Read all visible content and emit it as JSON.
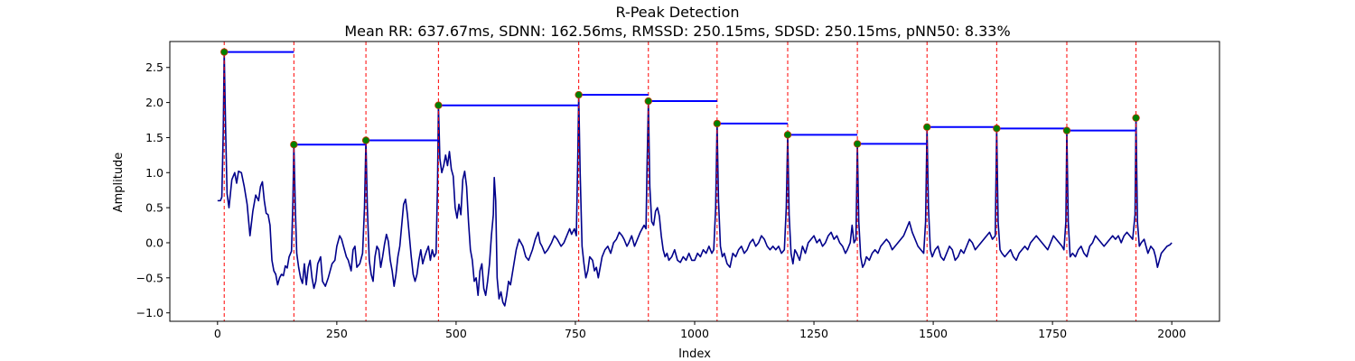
{
  "chart_data": {
    "type": "line",
    "title": "R-Peak Detection",
    "subtitle": "Mean RR: 637.67ms, SDNN: 162.56ms, RMSSD: 250.15ms, SDSD: 250.15ms, pNN50: 8.33%",
    "xlabel": "Index",
    "ylabel": "Amplitude",
    "xlim": [
      -100,
      2100
    ],
    "ylim": [
      -1.12,
      2.87
    ],
    "xticks": [
      0,
      250,
      500,
      750,
      1000,
      1250,
      1500,
      1750,
      2000
    ],
    "yticks": [
      -1.0,
      -0.5,
      0.0,
      0.5,
      1.0,
      1.5,
      2.0,
      2.5
    ],
    "grid": false,
    "colors": {
      "signal": "#00008b",
      "peak_lines": "#ff0000",
      "peak_marker_fill": "#008000",
      "peak_marker_edge": "#cc3300",
      "rr_segments": "#0000ff"
    },
    "signal": [
      [
        0,
        0.6
      ],
      [
        6,
        0.6
      ],
      [
        9,
        0.65
      ],
      [
        12,
        1.6
      ],
      [
        14,
        2.72
      ],
      [
        17,
        1.6
      ],
      [
        20,
        0.7
      ],
      [
        24,
        0.5
      ],
      [
        30,
        0.9
      ],
      [
        36,
        1.0
      ],
      [
        40,
        0.85
      ],
      [
        44,
        1.02
      ],
      [
        50,
        1.0
      ],
      [
        56,
        0.8
      ],
      [
        62,
        0.55
      ],
      [
        68,
        0.1
      ],
      [
        74,
        0.45
      ],
      [
        80,
        0.68
      ],
      [
        86,
        0.6
      ],
      [
        90,
        0.8
      ],
      [
        94,
        0.87
      ],
      [
        98,
        0.6
      ],
      [
        102,
        0.42
      ],
      [
        106,
        0.4
      ],
      [
        110,
        0.25
      ],
      [
        114,
        -0.25
      ],
      [
        118,
        -0.4
      ],
      [
        122,
        -0.45
      ],
      [
        126,
        -0.6
      ],
      [
        130,
        -0.5
      ],
      [
        134,
        -0.45
      ],
      [
        138,
        -0.47
      ],
      [
        142,
        -0.33
      ],
      [
        146,
        -0.36
      ],
      [
        150,
        -0.2
      ],
      [
        155,
        -0.12
      ],
      [
        158,
        0.6
      ],
      [
        160,
        1.4
      ],
      [
        163,
        0.5
      ],
      [
        166,
        -0.15
      ],
      [
        170,
        -0.35
      ],
      [
        174,
        -0.5
      ],
      [
        178,
        -0.58
      ],
      [
        182,
        -0.3
      ],
      [
        186,
        -0.6
      ],
      [
        190,
        -0.35
      ],
      [
        194,
        -0.25
      ],
      [
        198,
        -0.5
      ],
      [
        202,
        -0.65
      ],
      [
        206,
        -0.55
      ],
      [
        210,
        -0.3
      ],
      [
        216,
        -0.2
      ],
      [
        220,
        -0.55
      ],
      [
        226,
        -0.62
      ],
      [
        232,
        -0.5
      ],
      [
        236,
        -0.4
      ],
      [
        240,
        -0.3
      ],
      [
        246,
        -0.25
      ],
      [
        250,
        -0.05
      ],
      [
        256,
        0.1
      ],
      [
        260,
        0.05
      ],
      [
        266,
        -0.1
      ],
      [
        270,
        -0.2
      ],
      [
        274,
        -0.25
      ],
      [
        280,
        -0.4
      ],
      [
        284,
        -0.1
      ],
      [
        288,
        -0.05
      ],
      [
        292,
        -0.35
      ],
      [
        298,
        -0.3
      ],
      [
        304,
        -0.15
      ],
      [
        308,
        0.5
      ],
      [
        311,
        1.46
      ],
      [
        314,
        0.5
      ],
      [
        318,
        -0.25
      ],
      [
        322,
        -0.45
      ],
      [
        326,
        -0.55
      ],
      [
        330,
        -0.2
      ],
      [
        334,
        -0.05
      ],
      [
        338,
        -0.1
      ],
      [
        342,
        -0.35
      ],
      [
        346,
        -0.2
      ],
      [
        350,
        -0.02
      ],
      [
        354,
        0.12
      ],
      [
        358,
        0.02
      ],
      [
        362,
        -0.25
      ],
      [
        366,
        -0.4
      ],
      [
        370,
        -0.62
      ],
      [
        374,
        -0.45
      ],
      [
        378,
        -0.2
      ],
      [
        382,
        -0.05
      ],
      [
        386,
        0.25
      ],
      [
        390,
        0.55
      ],
      [
        394,
        0.62
      ],
      [
        398,
        0.4
      ],
      [
        402,
        0.1
      ],
      [
        406,
        -0.2
      ],
      [
        410,
        -0.45
      ],
      [
        414,
        -0.55
      ],
      [
        418,
        -0.45
      ],
      [
        422,
        -0.25
      ],
      [
        426,
        -0.1
      ],
      [
        430,
        -0.3
      ],
      [
        434,
        -0.2
      ],
      [
        438,
        -0.12
      ],
      [
        442,
        -0.05
      ],
      [
        446,
        -0.25
      ],
      [
        450,
        -0.1
      ],
      [
        454,
        -0.2
      ],
      [
        458,
        -0.15
      ],
      [
        461,
        0.8
      ],
      [
        463,
        1.96
      ],
      [
        466,
        1.2
      ],
      [
        470,
        1.0
      ],
      [
        474,
        1.1
      ],
      [
        478,
        1.25
      ],
      [
        482,
        1.1
      ],
      [
        486,
        1.3
      ],
      [
        490,
        1.05
      ],
      [
        494,
        0.95
      ],
      [
        498,
        0.5
      ],
      [
        502,
        0.35
      ],
      [
        506,
        0.55
      ],
      [
        510,
        0.4
      ],
      [
        514,
        0.9
      ],
      [
        518,
        1.02
      ],
      [
        522,
        0.8
      ],
      [
        526,
        0.3
      ],
      [
        530,
        -0.1
      ],
      [
        534,
        -0.25
      ],
      [
        538,
        -0.55
      ],
      [
        542,
        -0.5
      ],
      [
        546,
        -0.75
      ],
      [
        550,
        -0.4
      ],
      [
        554,
        -0.3
      ],
      [
        558,
        -0.65
      ],
      [
        562,
        -0.75
      ],
      [
        566,
        -0.55
      ],
      [
        570,
        -0.3
      ],
      [
        574,
        0.1
      ],
      [
        578,
        0.4
      ],
      [
        580,
        0.93
      ],
      [
        583,
        0.6
      ],
      [
        586,
        -0.5
      ],
      [
        590,
        -0.8
      ],
      [
        594,
        -0.7
      ],
      [
        598,
        -0.85
      ],
      [
        602,
        -0.9
      ],
      [
        606,
        -0.75
      ],
      [
        610,
        -0.55
      ],
      [
        614,
        -0.6
      ],
      [
        620,
        -0.35
      ],
      [
        626,
        -0.1
      ],
      [
        632,
        0.05
      ],
      [
        640,
        -0.05
      ],
      [
        646,
        -0.2
      ],
      [
        652,
        -0.25
      ],
      [
        660,
        -0.1
      ],
      [
        666,
        0.05
      ],
      [
        672,
        0.15
      ],
      [
        676,
        0.0
      ],
      [
        680,
        -0.05
      ],
      [
        686,
        -0.15
      ],
      [
        692,
        -0.1
      ],
      [
        700,
        0.0
      ],
      [
        706,
        0.1
      ],
      [
        712,
        0.05
      ],
      [
        720,
        -0.05
      ],
      [
        726,
        0.0
      ],
      [
        732,
        0.1
      ],
      [
        738,
        0.2
      ],
      [
        742,
        0.12
      ],
      [
        748,
        0.2
      ],
      [
        752,
        0.1
      ],
      [
        755,
        1.2
      ],
      [
        757,
        2.11
      ],
      [
        760,
        1.0
      ],
      [
        764,
        -0.05
      ],
      [
        768,
        -0.3
      ],
      [
        772,
        -0.5
      ],
      [
        776,
        -0.4
      ],
      [
        780,
        -0.2
      ],
      [
        786,
        -0.25
      ],
      [
        790,
        -0.4
      ],
      [
        794,
        -0.35
      ],
      [
        798,
        -0.5
      ],
      [
        802,
        -0.35
      ],
      [
        806,
        -0.2
      ],
      [
        812,
        -0.1
      ],
      [
        818,
        -0.05
      ],
      [
        824,
        -0.15
      ],
      [
        830,
        0.0
      ],
      [
        836,
        0.05
      ],
      [
        842,
        0.15
      ],
      [
        848,
        0.1
      ],
      [
        852,
        0.05
      ],
      [
        858,
        -0.05
      ],
      [
        862,
        0.0
      ],
      [
        868,
        0.1
      ],
      [
        874,
        -0.05
      ],
      [
        880,
        0.05
      ],
      [
        886,
        0.15
      ],
      [
        890,
        0.2
      ],
      [
        894,
        0.25
      ],
      [
        898,
        0.2
      ],
      [
        900,
        1.0
      ],
      [
        903,
        2.02
      ],
      [
        906,
        0.8
      ],
      [
        910,
        0.3
      ],
      [
        914,
        0.25
      ],
      [
        918,
        0.45
      ],
      [
        922,
        0.5
      ],
      [
        926,
        0.38
      ],
      [
        930,
        0.1
      ],
      [
        934,
        -0.1
      ],
      [
        938,
        -0.2
      ],
      [
        942,
        -0.15
      ],
      [
        946,
        -0.25
      ],
      [
        952,
        -0.2
      ],
      [
        958,
        -0.1
      ],
      [
        964,
        -0.25
      ],
      [
        970,
        -0.28
      ],
      [
        976,
        -0.2
      ],
      [
        982,
        -0.25
      ],
      [
        988,
        -0.15
      ],
      [
        994,
        -0.25
      ],
      [
        1000,
        -0.25
      ],
      [
        1006,
        -0.15
      ],
      [
        1012,
        -0.2
      ],
      [
        1018,
        -0.1
      ],
      [
        1024,
        -0.15
      ],
      [
        1030,
        -0.05
      ],
      [
        1036,
        -0.15
      ],
      [
        1040,
        -0.1
      ],
      [
        1044,
        0.5
      ],
      [
        1047,
        1.7
      ],
      [
        1050,
        0.6
      ],
      [
        1054,
        -0.05
      ],
      [
        1058,
        -0.2
      ],
      [
        1062,
        -0.15
      ],
      [
        1068,
        -0.3
      ],
      [
        1074,
        -0.35
      ],
      [
        1080,
        -0.15
      ],
      [
        1086,
        -0.2
      ],
      [
        1092,
        -0.1
      ],
      [
        1098,
        -0.05
      ],
      [
        1104,
        -0.15
      ],
      [
        1110,
        -0.1
      ],
      [
        1116,
        0.0
      ],
      [
        1122,
        0.05
      ],
      [
        1128,
        -0.05
      ],
      [
        1134,
        0.0
      ],
      [
        1140,
        0.1
      ],
      [
        1146,
        0.05
      ],
      [
        1152,
        -0.05
      ],
      [
        1158,
        -0.1
      ],
      [
        1164,
        -0.05
      ],
      [
        1170,
        -0.1
      ],
      [
        1176,
        -0.05
      ],
      [
        1182,
        -0.15
      ],
      [
        1188,
        -0.1
      ],
      [
        1192,
        0.5
      ],
      [
        1195,
        1.54
      ],
      [
        1198,
        0.4
      ],
      [
        1202,
        -0.15
      ],
      [
        1206,
        -0.3
      ],
      [
        1210,
        -0.1
      ],
      [
        1214,
        -0.15
      ],
      [
        1220,
        -0.25
      ],
      [
        1226,
        -0.05
      ],
      [
        1232,
        -0.15
      ],
      [
        1238,
        0.0
      ],
      [
        1244,
        0.05
      ],
      [
        1250,
        0.1
      ],
      [
        1256,
        0.0
      ],
      [
        1262,
        0.05
      ],
      [
        1268,
        -0.05
      ],
      [
        1274,
        0.0
      ],
      [
        1280,
        0.1
      ],
      [
        1286,
        0.15
      ],
      [
        1292,
        0.05
      ],
      [
        1298,
        0.1
      ],
      [
        1304,
        0.0
      ],
      [
        1310,
        -0.05
      ],
      [
        1316,
        -0.15
      ],
      [
        1320,
        -0.1
      ],
      [
        1326,
        0.0
      ],
      [
        1330,
        0.25
      ],
      [
        1334,
        0.0
      ],
      [
        1338,
        0.05
      ],
      [
        1341,
        1.41
      ],
      [
        1344,
        0.3
      ],
      [
        1348,
        -0.2
      ],
      [
        1352,
        -0.35
      ],
      [
        1356,
        -0.3
      ],
      [
        1360,
        -0.2
      ],
      [
        1366,
        -0.25
      ],
      [
        1372,
        -0.15
      ],
      [
        1378,
        -0.1
      ],
      [
        1384,
        -0.15
      ],
      [
        1390,
        -0.05
      ],
      [
        1396,
        0.0
      ],
      [
        1402,
        0.05
      ],
      [
        1408,
        0.0
      ],
      [
        1414,
        -0.1
      ],
      [
        1420,
        -0.05
      ],
      [
        1426,
        0.0
      ],
      [
        1432,
        0.05
      ],
      [
        1438,
        0.1
      ],
      [
        1444,
        0.2
      ],
      [
        1450,
        0.3
      ],
      [
        1456,
        0.15
      ],
      [
        1462,
        0.05
      ],
      [
        1468,
        -0.05
      ],
      [
        1474,
        -0.1
      ],
      [
        1480,
        -0.15
      ],
      [
        1484,
        0.3
      ],
      [
        1487,
        1.65
      ],
      [
        1490,
        0.5
      ],
      [
        1494,
        -0.1
      ],
      [
        1498,
        -0.2
      ],
      [
        1504,
        -0.1
      ],
      [
        1510,
        -0.05
      ],
      [
        1516,
        -0.2
      ],
      [
        1522,
        -0.25
      ],
      [
        1528,
        -0.15
      ],
      [
        1534,
        -0.05
      ],
      [
        1540,
        -0.1
      ],
      [
        1546,
        -0.25
      ],
      [
        1552,
        -0.2
      ],
      [
        1558,
        -0.1
      ],
      [
        1564,
        -0.15
      ],
      [
        1570,
        -0.05
      ],
      [
        1576,
        0.05
      ],
      [
        1582,
        0.0
      ],
      [
        1588,
        -0.1
      ],
      [
        1594,
        -0.05
      ],
      [
        1600,
        0.0
      ],
      [
        1606,
        0.05
      ],
      [
        1612,
        0.1
      ],
      [
        1618,
        0.15
      ],
      [
        1624,
        0.05
      ],
      [
        1630,
        0.1
      ],
      [
        1633,
        1.63
      ],
      [
        1636,
        0.3
      ],
      [
        1640,
        -0.1
      ],
      [
        1644,
        -0.15
      ],
      [
        1650,
        -0.2
      ],
      [
        1656,
        -0.15
      ],
      [
        1662,
        -0.1
      ],
      [
        1668,
        -0.2
      ],
      [
        1674,
        -0.25
      ],
      [
        1680,
        -0.15
      ],
      [
        1686,
        -0.1
      ],
      [
        1692,
        -0.05
      ],
      [
        1698,
        -0.1
      ],
      [
        1704,
        0.0
      ],
      [
        1710,
        0.05
      ],
      [
        1716,
        0.1
      ],
      [
        1722,
        0.05
      ],
      [
        1728,
        0.0
      ],
      [
        1734,
        -0.05
      ],
      [
        1740,
        -0.1
      ],
      [
        1746,
        0.0
      ],
      [
        1752,
        0.1
      ],
      [
        1758,
        0.05
      ],
      [
        1764,
        0.0
      ],
      [
        1770,
        -0.05
      ],
      [
        1774,
        -0.1
      ],
      [
        1778,
        0.3
      ],
      [
        1780,
        1.6
      ],
      [
        1783,
        0.3
      ],
      [
        1787,
        -0.2
      ],
      [
        1792,
        -0.15
      ],
      [
        1798,
        -0.2
      ],
      [
        1804,
        -0.1
      ],
      [
        1810,
        -0.05
      ],
      [
        1816,
        -0.15
      ],
      [
        1822,
        -0.2
      ],
      [
        1828,
        -0.05
      ],
      [
        1834,
        0.0
      ],
      [
        1840,
        0.1
      ],
      [
        1846,
        0.05
      ],
      [
        1852,
        0.0
      ],
      [
        1858,
        -0.05
      ],
      [
        1864,
        0.0
      ],
      [
        1870,
        0.05
      ],
      [
        1876,
        0.1
      ],
      [
        1882,
        0.05
      ],
      [
        1888,
        0.1
      ],
      [
        1894,
        0.0
      ],
      [
        1900,
        0.1
      ],
      [
        1906,
        0.15
      ],
      [
        1912,
        0.1
      ],
      [
        1918,
        0.05
      ],
      [
        1923,
        0.4
      ],
      [
        1925,
        1.78
      ],
      [
        1928,
        0.3
      ],
      [
        1932,
        -0.05
      ],
      [
        1936,
        0.0
      ],
      [
        1942,
        0.05
      ],
      [
        1946,
        -0.05
      ],
      [
        1950,
        -0.15
      ],
      [
        1956,
        -0.05
      ],
      [
        1962,
        -0.1
      ],
      [
        1966,
        -0.2
      ],
      [
        1970,
        -0.35
      ],
      [
        1974,
        -0.25
      ],
      [
        1978,
        -0.15
      ],
      [
        1984,
        -0.1
      ],
      [
        1990,
        -0.05
      ],
      [
        1996,
        -0.03
      ],
      [
        2000,
        0.0
      ]
    ],
    "peaks": [
      {
        "x": 14,
        "y": 2.72
      },
      {
        "x": 160,
        "y": 1.4
      },
      {
        "x": 311,
        "y": 1.46
      },
      {
        "x": 463,
        "y": 1.96
      },
      {
        "x": 757,
        "y": 2.11
      },
      {
        "x": 903,
        "y": 2.02
      },
      {
        "x": 1047,
        "y": 1.7
      },
      {
        "x": 1195,
        "y": 1.54
      },
      {
        "x": 1341,
        "y": 1.41
      },
      {
        "x": 1487,
        "y": 1.65
      },
      {
        "x": 1633,
        "y": 1.63
      },
      {
        "x": 1780,
        "y": 1.6
      },
      {
        "x": 1925,
        "y": 1.78
      }
    ]
  }
}
